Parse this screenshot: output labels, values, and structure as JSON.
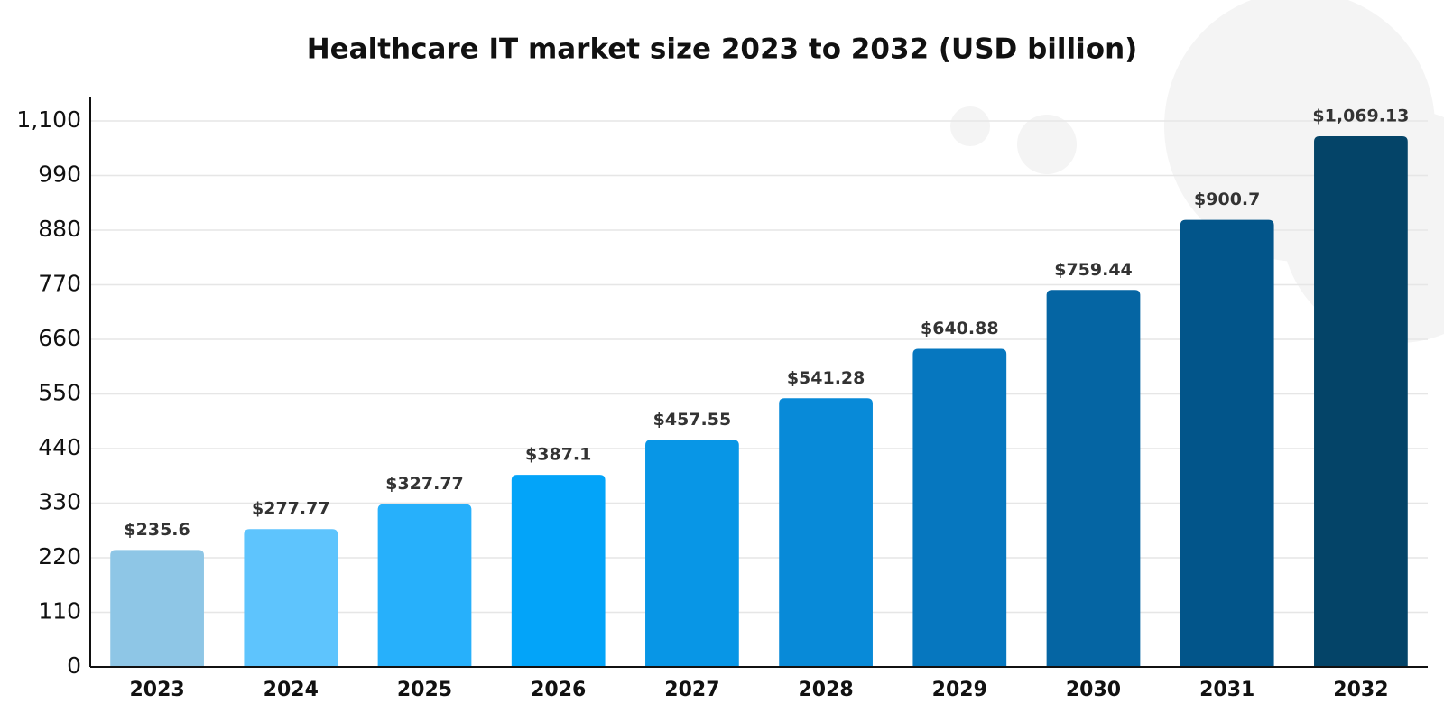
{
  "chart_data": {
    "type": "bar",
    "title": "Healthcare IT market size 2023 to 2032 (USD billion)",
    "categories": [
      "2023",
      "2024",
      "2025",
      "2026",
      "2027",
      "2028",
      "2029",
      "2030",
      "2031",
      "2032"
    ],
    "values": [
      235.6,
      277.77,
      327.77,
      387.1,
      457.55,
      541.28,
      640.88,
      759.44,
      900.7,
      1069.13
    ],
    "value_labels": [
      "$235.6",
      "$277.77",
      "$327.77",
      "$387.1",
      "$457.55",
      "$541.28",
      "$640.88",
      "$759.44",
      "$900.7",
      "$1,069.13"
    ],
    "colors": [
      "#8ec6e6",
      "#5ec4fd",
      "#27b0fb",
      "#03a4f9",
      "#0896e6",
      "#088ad8",
      "#0677bf",
      "#0565a3",
      "#02558a",
      "#044468"
    ],
    "ylim": [
      0,
      1100
    ],
    "yticks": [
      0,
      110,
      220,
      330,
      440,
      550,
      660,
      770,
      880,
      990,
      {
        "value": 1100,
        "label": "1,100"
      }
    ],
    "grid": true
  }
}
